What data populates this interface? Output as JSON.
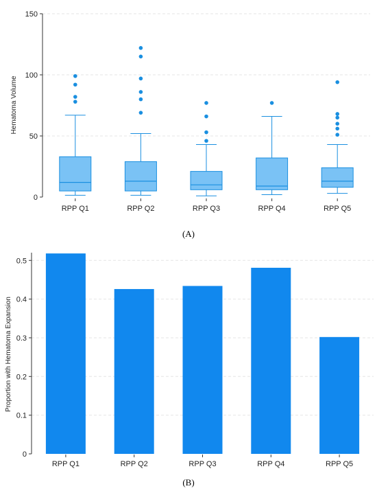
{
  "chart_data": [
    {
      "type": "box",
      "panel_label": "(A)",
      "categories": [
        "RPP Q1",
        "RPP Q2",
        "RPP Q3",
        "RPP Q4",
        "RPP Q5"
      ],
      "ylabel": "Hematoma Volume",
      "xlabel": "",
      "ylim": [
        0,
        150
      ],
      "yticks": [
        0,
        50,
        100,
        150
      ],
      "grid": true,
      "box_color": "#7ac2f5",
      "line_color": "#1a8fe0",
      "boxes": [
        {
          "category": "RPP Q1",
          "whisker_low": 1.5,
          "q1": 5,
          "median": 12,
          "q3": 33,
          "whisker_high": 67,
          "outliers": [
            78,
            82,
            92,
            99
          ]
        },
        {
          "category": "RPP Q2",
          "whisker_low": 1.5,
          "q1": 5,
          "median": 13,
          "q3": 29,
          "whisker_high": 52,
          "outliers": [
            69,
            80,
            86,
            97,
            115,
            122
          ]
        },
        {
          "category": "RPP Q3",
          "whisker_low": 1,
          "q1": 6,
          "median": 10,
          "q3": 21,
          "whisker_high": 43,
          "outliers": [
            46,
            53,
            66,
            77
          ]
        },
        {
          "category": "RPP Q4",
          "whisker_low": 2,
          "q1": 6,
          "median": 9,
          "q3": 32,
          "whisker_high": 66,
          "outliers": [
            77
          ]
        },
        {
          "category": "RPP Q5",
          "whisker_low": 3,
          "q1": 8,
          "median": 13,
          "q3": 24,
          "whisker_high": 43,
          "outliers": [
            51,
            56,
            60,
            65,
            68,
            94
          ]
        }
      ]
    },
    {
      "type": "bar",
      "panel_label": "(B)",
      "categories": [
        "RPP Q1",
        "RPP Q2",
        "RPP Q3",
        "RPP Q4",
        "RPP Q5"
      ],
      "values": [
        0.518,
        0.426,
        0.434,
        0.481,
        0.302
      ],
      "ylabel": "Proportion with Hematoma Expansion",
      "xlabel": "",
      "ylim": [
        0,
        0.52
      ],
      "yticks": [
        "0",
        "0.1",
        "0.2",
        "0.3",
        "0.4",
        "0.5"
      ],
      "grid": true,
      "bar_color": "#1188ee"
    }
  ]
}
